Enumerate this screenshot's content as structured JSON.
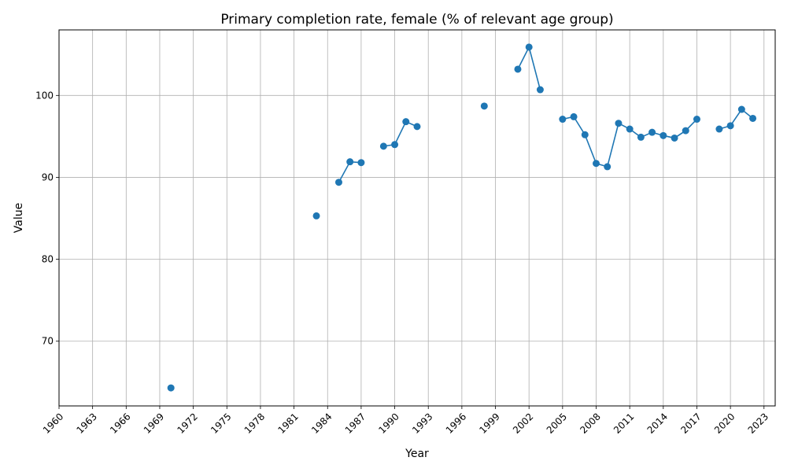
{
  "chart_data": {
    "type": "line",
    "title": "Primary completion rate, female (% of relevant age group)",
    "xlabel": "Year",
    "ylabel": "Value",
    "xlim": [
      1960,
      2024
    ],
    "ylim": [
      62.1,
      108.0
    ],
    "xticks": [
      1960,
      1963,
      1966,
      1969,
      1972,
      1975,
      1978,
      1981,
      1984,
      1987,
      1990,
      1993,
      1996,
      1999,
      2002,
      2005,
      2008,
      2011,
      2014,
      2017,
      2020,
      2023
    ],
    "yticks": [
      70,
      80,
      90,
      100
    ],
    "grid": true,
    "line_color": "#1f77b4",
    "series": [
      {
        "points": [
          [
            1970,
            64.3
          ],
          [
            1983,
            85.3
          ],
          [
            1985,
            89.4
          ],
          [
            1986,
            91.9
          ],
          [
            1987,
            91.8
          ],
          [
            1989,
            93.8
          ],
          [
            1990,
            94.0
          ],
          [
            1991,
            96.8
          ],
          [
            1992,
            96.2
          ],
          [
            1998,
            98.7
          ],
          [
            2001,
            103.2
          ],
          [
            2002,
            105.9
          ],
          [
            2003,
            100.7
          ],
          [
            2005,
            97.1
          ],
          [
            2006,
            97.4
          ],
          [
            2007,
            95.2
          ],
          [
            2008,
            91.7
          ],
          [
            2009,
            91.3
          ],
          [
            2010,
            96.6
          ],
          [
            2011,
            95.9
          ],
          [
            2012,
            94.9
          ],
          [
            2013,
            95.5
          ],
          [
            2014,
            95.1
          ],
          [
            2015,
            94.8
          ],
          [
            2016,
            95.7
          ],
          [
            2017,
            97.1
          ],
          [
            2019,
            95.9
          ],
          [
            2020,
            96.3
          ],
          [
            2021,
            98.3
          ],
          [
            2022,
            97.2
          ]
        ]
      }
    ]
  }
}
